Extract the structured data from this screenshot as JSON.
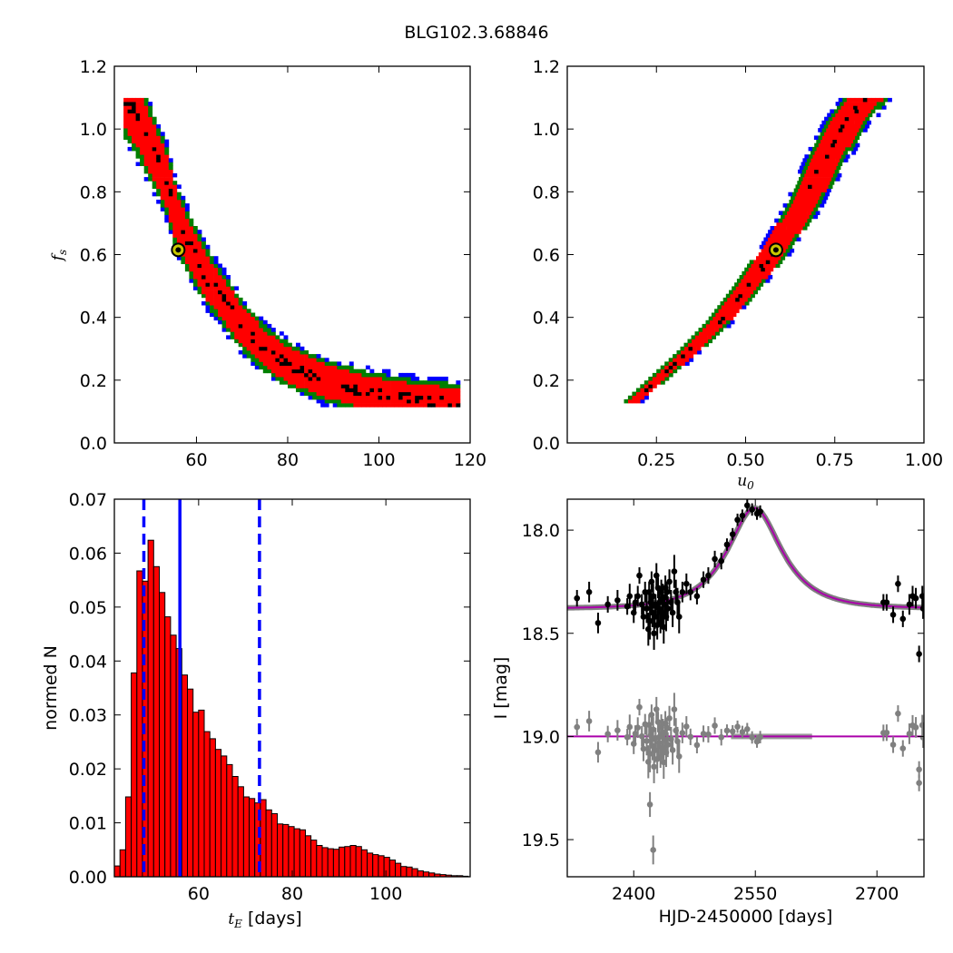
{
  "figure": {
    "title": "BLG102.3.68846"
  },
  "chart_data": [
    {
      "id": "fs_vs_tE",
      "type": "heatmap",
      "description": "posterior density of f_s vs t_E",
      "xlim": [
        42,
        120
      ],
      "ylim": [
        0.0,
        1.2
      ],
      "xticks": [
        60,
        80,
        100,
        120
      ],
      "yticks": [
        0.0,
        0.2,
        0.4,
        0.6,
        0.8,
        1.0,
        1.2
      ],
      "xticklabels": [
        "60",
        "80",
        "100",
        "120"
      ],
      "yticklabels": [
        "0.0",
        "0.2",
        "0.4",
        "0.6",
        "0.8",
        "1.0",
        "1.2"
      ],
      "ylabel": "f",
      "ylabel_sub": "s",
      "xlabel": "",
      "levels_colors": {
        "outer": "#0000ff",
        "mid": "#007f00",
        "inner": "#ff0000",
        "core": "#000000"
      },
      "ridge": [
        [
          44,
          1.09
        ],
        [
          47,
          1.02
        ],
        [
          50,
          0.93
        ],
        [
          53,
          0.83
        ],
        [
          55,
          0.72
        ],
        [
          58,
          0.62
        ],
        [
          62,
          0.52
        ],
        [
          66,
          0.44
        ],
        [
          70,
          0.36
        ],
        [
          75,
          0.29
        ],
        [
          80,
          0.24
        ],
        [
          88,
          0.19
        ],
        [
          96,
          0.16
        ],
        [
          104,
          0.14
        ],
        [
          110,
          0.13
        ],
        [
          117,
          0.12
        ]
      ],
      "best_fit": {
        "x": 56,
        "y": 0.615
      }
    },
    {
      "id": "fs_vs_u0",
      "type": "heatmap",
      "description": "posterior density of f_s vs u_0",
      "xlim": [
        0.0,
        1.0
      ],
      "ylim": [
        0.0,
        1.2
      ],
      "xticks": [
        0.25,
        0.5,
        0.75,
        1.0
      ],
      "yticks": [
        0.0,
        0.2,
        0.4,
        0.6,
        0.8,
        1.0,
        1.2
      ],
      "xticklabels": [
        "0.25",
        "0.50",
        "0.75",
        "1.00"
      ],
      "yticklabels": [
        "0.0",
        "0.2",
        "0.4",
        "0.6",
        "0.8",
        "1.0",
        "1.2"
      ],
      "xlabel": "u",
      "xlabel_sub": "0",
      "ridge": [
        [
          0.17,
          0.12
        ],
        [
          0.25,
          0.2
        ],
        [
          0.33,
          0.28
        ],
        [
          0.42,
          0.38
        ],
        [
          0.5,
          0.49
        ],
        [
          0.58,
          0.615
        ],
        [
          0.66,
          0.76
        ],
        [
          0.72,
          0.9
        ],
        [
          0.78,
          1.02
        ],
        [
          0.83,
          1.09
        ]
      ],
      "best_fit": {
        "x": 0.585,
        "y": 0.615
      }
    },
    {
      "id": "tE_histogram",
      "type": "bar",
      "xlim": [
        42,
        118
      ],
      "ylim": [
        0.0,
        0.07
      ],
      "xticks": [
        60,
        80,
        100
      ],
      "yticks": [
        0.0,
        0.01,
        0.02,
        0.03,
        0.04,
        0.05,
        0.06,
        0.07
      ],
      "xticklabels": [
        "60",
        "80",
        "100"
      ],
      "yticklabels": [
        "0.00",
        "0.01",
        "0.02",
        "0.03",
        "0.04",
        "0.05",
        "0.06",
        "0.07"
      ],
      "xlabel": "t",
      "xlabel_sub": "E",
      "xlabel_suffix": " [days]",
      "ylabel": "normed N",
      "bin_start": 42,
      "bin_width": 1.2,
      "values": [
        0.002,
        0.005,
        0.0148,
        0.0378,
        0.0567,
        0.0548,
        0.0624,
        0.0575,
        0.0527,
        0.0482,
        0.0448,
        0.0423,
        0.0374,
        0.0348,
        0.0305,
        0.0309,
        0.0269,
        0.0256,
        0.0236,
        0.0224,
        0.0208,
        0.0186,
        0.0167,
        0.0148,
        0.0145,
        0.0137,
        0.0143,
        0.0124,
        0.0117,
        0.0098,
        0.0097,
        0.0093,
        0.0089,
        0.0087,
        0.0076,
        0.0068,
        0.0058,
        0.0054,
        0.0052,
        0.0051,
        0.0055,
        0.0056,
        0.0058,
        0.0056,
        0.005,
        0.0044,
        0.0041,
        0.0039,
        0.0036,
        0.0031,
        0.0025,
        0.0019,
        0.0018,
        0.0015,
        0.0011,
        0.0009,
        0.0007,
        0.0005,
        0.0004,
        0.0003,
        0.0002,
        0.0002,
        0.0001
      ],
      "bar_color": "#ff0000",
      "median": 56.0,
      "lower": 48.3,
      "upper": 73.0,
      "line_color": "#0000ff"
    },
    {
      "id": "lightcurve",
      "type": "scatter",
      "xlim": [
        2318,
        2758
      ],
      "ylim": [
        19.68,
        17.85
      ],
      "xticks": [
        2400,
        2550,
        2700
      ],
      "yticks": [
        18.0,
        18.5,
        19.0,
        19.5
      ],
      "xticklabels": [
        "2400",
        "2550",
        "2700"
      ],
      "yticklabels": [
        "18.0",
        "18.5",
        "19.0",
        "19.5"
      ],
      "xlabel": "HJD-2450000 [days]",
      "ylabel": "I [mag]",
      "model": {
        "t0": 2549,
        "tE": 56,
        "u0": 0.585,
        "fs": 0.615,
        "baseline": 18.38,
        "color": "#aa00aa"
      },
      "residual_offset": 19.0,
      "data_color": "#000000",
      "residual_color": "#808080",
      "points": [
        [
          2330,
          18.33,
          0.04
        ],
        [
          2345,
          18.3,
          0.05
        ],
        [
          2356,
          18.45,
          0.05
        ],
        [
          2368,
          18.36,
          0.04
        ],
        [
          2380,
          18.34,
          0.05
        ],
        [
          2392,
          18.37,
          0.04
        ],
        [
          2395,
          18.32,
          0.06
        ],
        [
          2400,
          18.4,
          0.05
        ],
        [
          2402,
          18.35,
          0.04
        ],
        [
          2405,
          18.32,
          0.05
        ],
        [
          2407,
          18.22,
          0.04
        ],
        [
          2410,
          18.36,
          0.05
        ],
        [
          2412,
          18.42,
          0.06
        ],
        [
          2414,
          18.3,
          0.05
        ],
        [
          2416,
          18.38,
          0.07
        ],
        [
          2418,
          18.48,
          0.08
        ],
        [
          2419,
          18.3,
          0.05
        ],
        [
          2420,
          18.44,
          0.09
        ],
        [
          2421,
          18.35,
          0.06
        ],
        [
          2422,
          18.25,
          0.05
        ],
        [
          2423,
          18.4,
          0.07
        ],
        [
          2424,
          18.32,
          0.06
        ],
        [
          2425,
          18.5,
          0.08
        ],
        [
          2426,
          18.42,
          0.06
        ],
        [
          2427,
          18.36,
          0.05
        ],
        [
          2428,
          18.22,
          0.06
        ],
        [
          2429,
          18.46,
          0.07
        ],
        [
          2430,
          18.28,
          0.05
        ],
        [
          2431,
          18.38,
          0.08
        ],
        [
          2432,
          18.35,
          0.06
        ],
        [
          2433,
          18.45,
          0.05
        ],
        [
          2434,
          18.3,
          0.06
        ],
        [
          2435,
          18.4,
          0.05
        ],
        [
          2436,
          18.33,
          0.07
        ],
        [
          2437,
          18.47,
          0.08
        ],
        [
          2438,
          18.36,
          0.05
        ],
        [
          2439,
          18.28,
          0.06
        ],
        [
          2440,
          18.42,
          0.07
        ],
        [
          2441,
          18.3,
          0.05
        ],
        [
          2442,
          18.38,
          0.06
        ],
        [
          2444,
          18.25,
          0.06
        ],
        [
          2446,
          18.35,
          0.06
        ],
        [
          2448,
          18.4,
          0.07
        ],
        [
          2450,
          18.2,
          0.08
        ],
        [
          2452,
          18.3,
          0.06
        ],
        [
          2454,
          18.35,
          0.07
        ],
        [
          2456,
          18.42,
          0.08
        ],
        [
          2460,
          18.3,
          0.05
        ],
        [
          2465,
          18.26,
          0.05
        ],
        [
          2470,
          18.3,
          0.04
        ],
        [
          2478,
          18.32,
          0.04
        ],
        [
          2486,
          18.24,
          0.04
        ],
        [
          2492,
          18.22,
          0.04
        ],
        [
          2500,
          18.14,
          0.04
        ],
        [
          2508,
          18.15,
          0.04
        ],
        [
          2515,
          18.07,
          0.03
        ],
        [
          2522,
          18.02,
          0.03
        ],
        [
          2528,
          17.95,
          0.03
        ],
        [
          2534,
          17.93,
          0.03
        ],
        [
          2540,
          17.88,
          0.03
        ],
        [
          2546,
          17.9,
          0.03
        ],
        [
          2552,
          17.92,
          0.03
        ],
        [
          2556,
          17.91,
          0.03
        ],
        [
          2708,
          18.35,
          0.04
        ],
        [
          2712,
          18.35,
          0.04
        ],
        [
          2720,
          18.41,
          0.04
        ],
        [
          2726,
          18.26,
          0.04
        ],
        [
          2732,
          18.43,
          0.04
        ],
        [
          2740,
          18.36,
          0.05
        ],
        [
          2744,
          18.32,
          0.05
        ],
        [
          2748,
          18.33,
          0.05
        ],
        [
          2752,
          18.6,
          0.04
        ],
        [
          2756,
          18.32,
          0.05
        ],
        [
          2757,
          18.38,
          0.05
        ]
      ]
    }
  ]
}
